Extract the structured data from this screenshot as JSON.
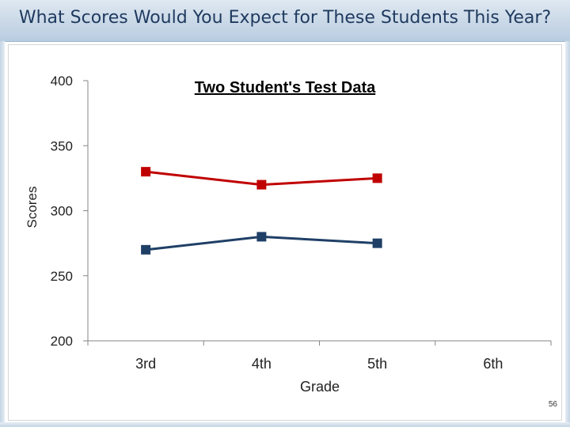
{
  "slide": {
    "title": "What Scores Would You Expect for These Students This Year?",
    "page_number": "56"
  },
  "chart_data": {
    "type": "line",
    "title": "Two Student's Test Data",
    "xlabel": "Grade",
    "ylabel": "Scores",
    "categories": [
      "3rd",
      "4th",
      "5th",
      "6th"
    ],
    "ylim": [
      200,
      400
    ],
    "yticks": [
      "200",
      "250",
      "300",
      "350",
      "400"
    ],
    "grid": false,
    "legend": "none",
    "series": [
      {
        "color": "#c00000",
        "values": [
          330,
          320,
          325,
          null
        ]
      },
      {
        "color": "#1f3f66",
        "values": [
          270,
          280,
          275,
          null
        ]
      }
    ]
  }
}
